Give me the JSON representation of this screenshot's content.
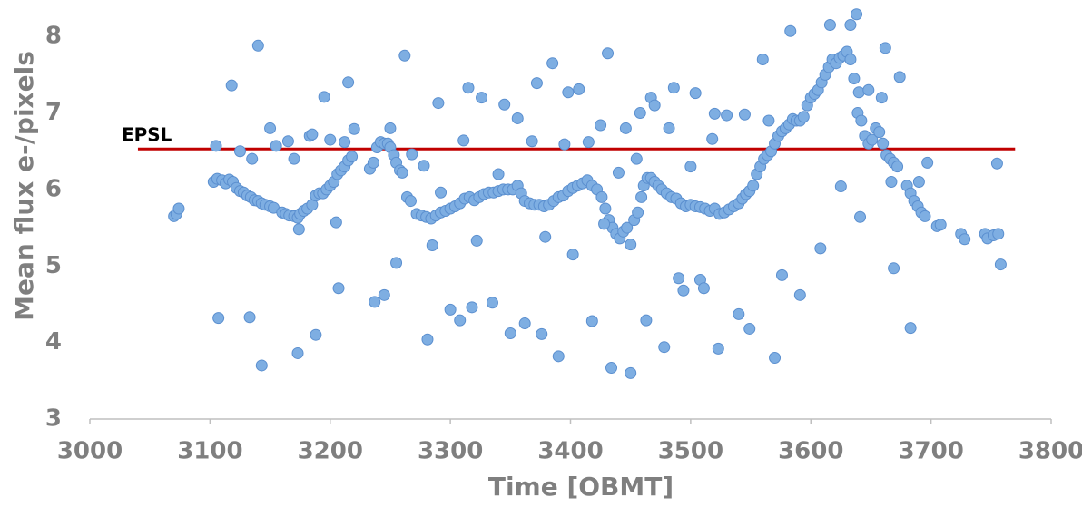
{
  "chart_data": {
    "type": "scatter",
    "x_label": "Time [OBMT]",
    "y_label": "Mean flux e-/pixels",
    "x": [
      3070,
      3072,
      3074,
      3103,
      3106,
      3110,
      3113,
      3116,
      3119,
      3122,
      3125,
      3128,
      3131,
      3134,
      3137,
      3140,
      3143,
      3146,
      3150,
      3153,
      3160,
      3163,
      3166,
      3170,
      3173,
      3175,
      3178,
      3181,
      3174,
      3185,
      3188,
      3191,
      3194,
      3197,
      3200,
      3203,
      3206,
      3209,
      3212,
      3215,
      3218,
      3233,
      3236,
      3239,
      3242,
      3245,
      3248,
      3250,
      3253,
      3255,
      3258,
      3260,
      3264,
      3267,
      3272,
      3276,
      3280,
      3284,
      3288,
      3292,
      3296,
      3300,
      3304,
      3308,
      3312,
      3316,
      3320,
      3324,
      3328,
      3332,
      3336,
      3340,
      3344,
      3348,
      3352,
      3356,
      3359,
      3362,
      3366,
      3370,
      3374,
      3378,
      3382,
      3386,
      3390,
      3394,
      3398,
      3402,
      3406,
      3410,
      3414,
      3418,
      3422,
      3426,
      3429,
      3432,
      3435,
      3438,
      3441,
      3444,
      3447,
      3450,
      3453,
      3456,
      3459,
      3461,
      3464,
      3467,
      3470,
      3473,
      3476,
      3480,
      3484,
      3488,
      3492,
      3496,
      3500,
      3504,
      3508,
      3512,
      3516,
      3520,
      3524,
      3528,
      3532,
      3536,
      3540,
      3543,
      3546,
      3549,
      3552,
      3555,
      3558,
      3561,
      3564,
      3567,
      3570,
      3573,
      3576,
      3579,
      3582,
      3585,
      3588,
      3591,
      3594,
      3597,
      3600,
      3603,
      3606,
      3609,
      3612,
      3615,
      3618,
      3621,
      3624,
      3627,
      3630,
      3633,
      3636,
      3639,
      3642,
      3645,
      3648,
      3651,
      3654,
      3657,
      3660,
      3663,
      3666,
      3669,
      3672,
      3680,
      3683,
      3686,
      3689,
      3692,
      3695,
      3705,
      3708,
      3725,
      3728,
      3745,
      3747,
      3752,
      3756,
      3105,
      3107,
      3118,
      3125,
      3133,
      3135,
      3140,
      3143,
      3150,
      3155,
      3165,
      3170,
      3173,
      3183,
      3185,
      3188,
      3195,
      3200,
      3205,
      3207,
      3212,
      3215,
      3220,
      3237,
      3245,
      3250,
      3255,
      3262,
      3268,
      3278,
      3281,
      3285,
      3290,
      3292,
      3300,
      3308,
      3311,
      3315,
      3318,
      3322,
      3326,
      3335,
      3340,
      3345,
      3350,
      3356,
      3362,
      3368,
      3372,
      3376,
      3379,
      3385,
      3390,
      3395,
      3398,
      3402,
      3407,
      3415,
      3418,
      3425,
      3428,
      3431,
      3434,
      3440,
      3446,
      3450,
      3455,
      3458,
      3463,
      3467,
      3470,
      3478,
      3482,
      3486,
      3490,
      3494,
      3500,
      3504,
      3508,
      3511,
      3518,
      3520,
      3523,
      3530,
      3540,
      3545,
      3549,
      3560,
      3565,
      3570,
      3576,
      3583,
      3591,
      3608,
      3616,
      3625,
      3633,
      3638,
      3640,
      3641,
      3648,
      3659,
      3662,
      3667,
      3669,
      3674,
      3683,
      3690,
      3697,
      3755,
      3758
    ],
    "values": [
      5.65,
      5.68,
      5.75,
      6.1,
      6.14,
      6.12,
      6.08,
      6.13,
      6.1,
      6.02,
      5.98,
      5.96,
      5.92,
      5.9,
      5.86,
      5.85,
      5.82,
      5.8,
      5.78,
      5.76,
      5.7,
      5.68,
      5.66,
      5.65,
      5.63,
      5.68,
      5.72,
      5.75,
      5.48,
      5.8,
      5.92,
      5.95,
      5.95,
      6.0,
      6.05,
      6.1,
      6.2,
      6.25,
      6.3,
      6.38,
      6.43,
      6.27,
      6.35,
      6.55,
      6.62,
      6.6,
      6.6,
      6.55,
      6.45,
      6.35,
      6.25,
      6.22,
      5.9,
      5.85,
      5.68,
      5.66,
      5.64,
      5.62,
      5.66,
      5.7,
      5.72,
      5.75,
      5.78,
      5.82,
      5.88,
      5.9,
      5.86,
      5.9,
      5.94,
      5.96,
      5.96,
      5.98,
      6.0,
      6.0,
      6.0,
      6.05,
      5.95,
      5.85,
      5.82,
      5.8,
      5.8,
      5.78,
      5.8,
      5.85,
      5.9,
      5.92,
      5.98,
      6.02,
      6.05,
      6.08,
      6.12,
      6.05,
      6.0,
      5.9,
      5.75,
      5.6,
      5.5,
      5.42,
      5.36,
      5.45,
      5.5,
      5.28,
      5.6,
      5.7,
      5.9,
      6.05,
      6.15,
      6.15,
      6.1,
      6.05,
      6.0,
      5.95,
      5.9,
      5.88,
      5.82,
      5.78,
      5.8,
      5.78,
      5.77,
      5.75,
      5.72,
      5.75,
      5.68,
      5.7,
      5.74,
      5.78,
      5.82,
      5.88,
      5.94,
      5.98,
      6.05,
      6.2,
      6.3,
      6.4,
      6.45,
      6.5,
      6.6,
      6.7,
      6.76,
      6.8,
      6.85,
      6.92,
      6.9,
      6.9,
      6.95,
      7.1,
      7.2,
      7.25,
      7.3,
      7.4,
      7.5,
      7.6,
      7.7,
      7.65,
      7.72,
      7.75,
      7.8,
      7.7,
      7.45,
      7.0,
      6.9,
      6.7,
      6.6,
      6.65,
      6.8,
      6.75,
      6.6,
      6.45,
      6.4,
      6.35,
      6.3,
      6.05,
      5.95,
      5.85,
      5.78,
      5.7,
      5.65,
      5.52,
      5.54,
      5.42,
      5.35,
      5.42,
      5.36,
      5.4,
      5.42,
      6.57,
      4.32,
      7.36,
      6.5,
      4.33,
      6.4,
      7.88,
      3.7,
      6.8,
      6.57,
      6.63,
      6.4,
      3.86,
      6.7,
      6.72,
      4.1,
      7.21,
      6.65,
      5.57,
      4.71,
      6.62,
      7.4,
      6.79,
      4.53,
      4.62,
      6.8,
      5.04,
      7.75,
      6.46,
      6.31,
      4.04,
      5.27,
      7.13,
      5.96,
      4.43,
      4.29,
      6.64,
      7.33,
      4.46,
      5.33,
      7.2,
      4.52,
      6.2,
      7.11,
      4.12,
      6.93,
      4.25,
      6.63,
      7.39,
      4.11,
      5.38,
      7.65,
      3.82,
      6.59,
      7.27,
      5.15,
      7.31,
      6.62,
      4.28,
      6.84,
      5.55,
      7.78,
      3.67,
      6.22,
      6.8,
      3.6,
      6.4,
      7.0,
      4.29,
      7.2,
      7.1,
      3.94,
      6.8,
      7.33,
      4.84,
      4.68,
      6.3,
      7.26,
      4.82,
      4.71,
      6.66,
      6.99,
      3.92,
      6.97,
      4.37,
      6.98,
      4.18,
      7.7,
      6.9,
      3.8,
      4.88,
      8.07,
      4.62,
      5.23,
      8.15,
      6.04,
      8.15,
      8.29,
      7.27,
      5.64,
      7.3,
      7.2,
      7.85,
      6.1,
      4.97,
      7.47,
      4.19,
      6.1,
      6.35,
      6.34,
      5.02
    ],
    "color": "#7eaee2",
    "xlim": [
      3000,
      3800
    ],
    "xticks": [
      3000,
      3100,
      3200,
      3300,
      3400,
      3500,
      3600,
      3700,
      3800
    ],
    "ylim": [
      3,
      8.5
    ],
    "yticks": [
      3,
      4,
      5,
      6,
      7,
      8
    ],
    "reference_line": {
      "label": "EPSL",
      "y": 6.53,
      "x": [
        3040,
        3770
      ],
      "color": "#c00000"
    }
  }
}
